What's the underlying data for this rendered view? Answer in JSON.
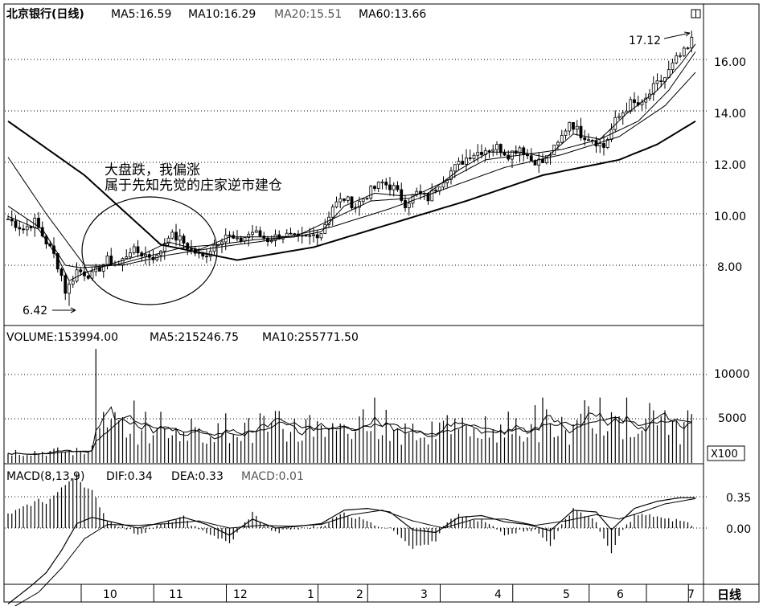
{
  "window": {
    "toggle_icon": "window-toggle-icon"
  },
  "price_panel": {
    "header_title": "北京银行(日线)",
    "ma_values": [
      {
        "label": "MA5:16.59"
      },
      {
        "label": "MA10:16.29"
      },
      {
        "label": "MA20:15.51"
      },
      {
        "label": "MA60:13.66"
      }
    ],
    "annotation_lines": [
      "大盘跌，我偏涨",
      "属于先知先觉的庄家逆市建仓"
    ],
    "high_label": "17.12",
    "low_label": "6.42",
    "y_ticks": [
      "16.00",
      "14.00",
      "12.00",
      "10.00",
      "8.00"
    ]
  },
  "volume_panel": {
    "header_parts": [
      {
        "label": "VOLUME:153994.00"
      },
      {
        "label": "MA5:215246.75"
      },
      {
        "label": "MA10:255771.50"
      }
    ],
    "y_ticks": [
      "10000",
      "5000"
    ],
    "unit_badge": "X100"
  },
  "macd_panel": {
    "header_parts": [
      {
        "label": "MACD(8,13,9)"
      },
      {
        "label": "DIF:0.34"
      },
      {
        "label": "DEA:0.33"
      },
      {
        "label": "MACD:0.01"
      }
    ],
    "y_ticks": [
      "0.35",
      "0.00"
    ]
  },
  "x_axis": {
    "month_labels": [
      "10",
      "11",
      "12",
      "1",
      "2",
      "3",
      "4",
      "5",
      "6",
      "7"
    ],
    "period_label": "日线"
  },
  "chart_data": {
    "type": "line",
    "price": {
      "ylim": [
        6,
        17.6
      ],
      "high": 17.12,
      "low": 6.42,
      "close_path": [
        [
          0,
          9.8
        ],
        [
          4,
          9.4
        ],
        [
          7,
          9.7
        ],
        [
          10,
          8.9
        ],
        [
          12,
          8.4
        ],
        [
          14,
          7.6
        ],
        [
          15,
          7.0
        ],
        [
          16,
          7.2
        ],
        [
          18,
          7.8
        ],
        [
          22,
          7.6
        ],
        [
          26,
          8.2
        ],
        [
          29,
          8.0
        ],
        [
          32,
          8.6
        ],
        [
          36,
          8.4
        ],
        [
          39,
          8.3
        ],
        [
          42,
          9.2
        ],
        [
          45,
          9.0
        ],
        [
          48,
          8.6
        ],
        [
          51,
          8.3
        ],
        [
          54,
          8.8
        ],
        [
          57,
          9.2
        ],
        [
          60,
          8.9
        ],
        [
          64,
          9.3
        ],
        [
          68,
          9.0
        ],
        [
          72,
          9.2
        ],
        [
          76,
          9.0
        ],
        [
          79,
          9.1
        ],
        [
          82,
          9.3
        ],
        [
          85,
          10.3
        ],
        [
          88,
          10.6
        ],
        [
          91,
          10.3
        ],
        [
          95,
          10.9
        ],
        [
          98,
          11.2
        ],
        [
          101,
          11.0
        ],
        [
          104,
          10.4
        ],
        [
          107,
          10.8
        ],
        [
          110,
          10.6
        ],
        [
          113,
          11.2
        ],
        [
          117,
          11.8
        ],
        [
          121,
          12.3
        ],
        [
          125,
          12.5
        ],
        [
          128,
          12.6
        ],
        [
          131,
          12.3
        ],
        [
          134,
          12.6
        ],
        [
          137,
          12.1
        ],
        [
          140,
          12.0
        ],
        [
          144,
          12.7
        ],
        [
          147,
          13.6
        ],
        [
          150,
          13.1
        ],
        [
          153,
          12.9
        ],
        [
          156,
          12.6
        ],
        [
          159,
          13.6
        ],
        [
          163,
          14.3
        ],
        [
          166,
          14.2
        ],
        [
          169,
          14.9
        ],
        [
          172,
          15.3
        ],
        [
          175,
          16.0
        ],
        [
          178,
          16.4
        ],
        [
          180,
          17.1
        ]
      ],
      "ma5_path": [
        [
          0,
          9.9
        ],
        [
          8,
          9.4
        ],
        [
          13,
          8.3
        ],
        [
          16,
          7.4
        ],
        [
          20,
          7.7
        ],
        [
          28,
          8.1
        ],
        [
          35,
          8.4
        ],
        [
          42,
          8.9
        ],
        [
          50,
          8.6
        ],
        [
          58,
          9.1
        ],
        [
          66,
          9.1
        ],
        [
          75,
          9.1
        ],
        [
          82,
          9.3
        ],
        [
          88,
          10.3
        ],
        [
          96,
          10.8
        ],
        [
          103,
          10.7
        ],
        [
          110,
          10.8
        ],
        [
          118,
          11.7
        ],
        [
          126,
          12.4
        ],
        [
          134,
          12.4
        ],
        [
          141,
          12.2
        ],
        [
          148,
          13.1
        ],
        [
          155,
          12.9
        ],
        [
          162,
          13.9
        ],
        [
          170,
          14.8
        ],
        [
          176,
          15.8
        ],
        [
          180,
          16.6
        ]
      ],
      "ma10_path": [
        [
          0,
          10.3
        ],
        [
          9,
          9.4
        ],
        [
          15,
          8.0
        ],
        [
          19,
          7.9
        ],
        [
          28,
          8.0
        ],
        [
          38,
          8.4
        ],
        [
          46,
          8.7
        ],
        [
          55,
          8.8
        ],
        [
          65,
          9.0
        ],
        [
          75,
          9.1
        ],
        [
          85,
          9.8
        ],
        [
          95,
          10.5
        ],
        [
          105,
          10.6
        ],
        [
          115,
          11.3
        ],
        [
          125,
          12.1
        ],
        [
          135,
          12.3
        ],
        [
          145,
          12.5
        ],
        [
          155,
          12.9
        ],
        [
          165,
          13.6
        ],
        [
          173,
          14.8
        ],
        [
          180,
          16.3
        ]
      ],
      "ma20_path": [
        [
          0,
          12.2
        ],
        [
          10,
          10.0
        ],
        [
          20,
          8.0
        ],
        [
          30,
          8.0
        ],
        [
          42,
          8.4
        ],
        [
          55,
          8.7
        ],
        [
          70,
          9.0
        ],
        [
          85,
          9.5
        ],
        [
          100,
          10.2
        ],
        [
          115,
          11.0
        ],
        [
          130,
          11.8
        ],
        [
          145,
          12.3
        ],
        [
          160,
          13.0
        ],
        [
          172,
          14.2
        ],
        [
          180,
          15.5
        ]
      ],
      "ma60_path": [
        [
          0,
          13.6
        ],
        [
          20,
          11.5
        ],
        [
          40,
          8.8
        ],
        [
          60,
          8.2
        ],
        [
          80,
          8.7
        ],
        [
          100,
          9.6
        ],
        [
          120,
          10.5
        ],
        [
          140,
          11.5
        ],
        [
          160,
          12.1
        ],
        [
          170,
          12.7
        ],
        [
          180,
          13.6
        ]
      ]
    },
    "volume": {
      "ylim": [
        0,
        13000
      ],
      "grid_values": [
        10000,
        5000
      ],
      "latest": 153994.0,
      "ma5": 215246.75,
      "ma10": 255771.5
    },
    "macd": {
      "params": [
        8,
        13,
        9
      ],
      "dif": 0.34,
      "dea": 0.33,
      "macd": 0.01,
      "ylim": [
        -0.95,
        0.65
      ],
      "grid_values": [
        0.35,
        0.0
      ],
      "dif_path": [
        [
          0,
          -0.85
        ],
        [
          6,
          -0.65
        ],
        [
          10,
          -0.5
        ],
        [
          14,
          -0.25
        ],
        [
          18,
          0.05
        ],
        [
          22,
          0.12
        ],
        [
          28,
          0.06
        ],
        [
          34,
          0.0
        ],
        [
          40,
          0.06
        ],
        [
          46,
          0.12
        ],
        [
          52,
          0.04
        ],
        [
          58,
          -0.08
        ],
        [
          64,
          0.1
        ],
        [
          70,
          0.0
        ],
        [
          76,
          0.02
        ],
        [
          82,
          0.05
        ],
        [
          88,
          0.2
        ],
        [
          94,
          0.22
        ],
        [
          100,
          0.18
        ],
        [
          106,
          -0.02
        ],
        [
          112,
          -0.05
        ],
        [
          118,
          0.12
        ],
        [
          124,
          0.14
        ],
        [
          130,
          0.07
        ],
        [
          136,
          0.04
        ],
        [
          142,
          -0.03
        ],
        [
          148,
          0.2
        ],
        [
          154,
          0.18
        ],
        [
          158,
          -0.02
        ],
        [
          164,
          0.22
        ],
        [
          170,
          0.3
        ],
        [
          176,
          0.34
        ],
        [
          180,
          0.34
        ]
      ],
      "dea_path": [
        [
          0,
          -0.92
        ],
        [
          8,
          -0.72
        ],
        [
          14,
          -0.45
        ],
        [
          20,
          -0.12
        ],
        [
          26,
          0.04
        ],
        [
          34,
          0.03
        ],
        [
          42,
          0.05
        ],
        [
          50,
          0.08
        ],
        [
          58,
          0.0
        ],
        [
          66,
          0.03
        ],
        [
          74,
          0.02
        ],
        [
          82,
          0.04
        ],
        [
          90,
          0.15
        ],
        [
          98,
          0.2
        ],
        [
          106,
          0.08
        ],
        [
          114,
          0.0
        ],
        [
          122,
          0.1
        ],
        [
          130,
          0.1
        ],
        [
          138,
          0.03
        ],
        [
          146,
          0.08
        ],
        [
          154,
          0.15
        ],
        [
          160,
          0.1
        ],
        [
          166,
          0.18
        ],
        [
          172,
          0.27
        ],
        [
          180,
          0.33
        ]
      ]
    },
    "x_month_labels": [
      "10",
      "11",
      "12",
      "1",
      "2",
      "3",
      "4",
      "5",
      "6",
      "7"
    ]
  }
}
